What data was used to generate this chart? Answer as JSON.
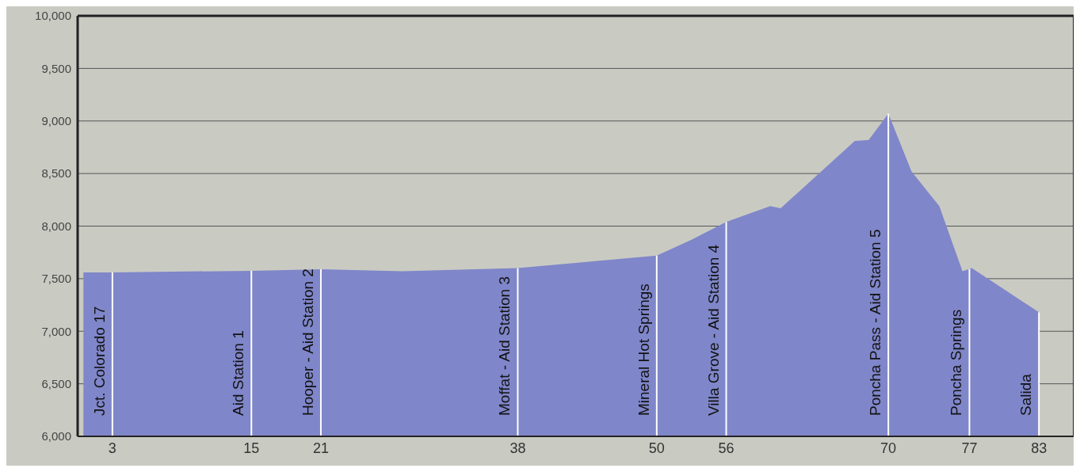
{
  "chart_data": {
    "type": "area",
    "x": [
      0.5,
      3,
      15,
      21,
      28,
      38,
      43,
      50,
      53,
      56,
      59.8,
      60.7,
      67.1,
      68.3,
      70,
      72,
      74.4,
      76.4,
      77.2,
      83
    ],
    "values": [
      7560,
      7560,
      7575,
      7590,
      7570,
      7600,
      7650,
      7720,
      7870,
      8040,
      8190,
      8170,
      8810,
      8820,
      9070,
      8520,
      8190,
      7570,
      7600,
      7180
    ],
    "color": "#7f86c9",
    "xlim": [
      0,
      86
    ],
    "xticks": [
      3,
      15,
      21,
      38,
      50,
      56,
      70,
      77,
      83
    ],
    "ylim": [
      6000,
      10000
    ],
    "yticks": [
      {
        "value": 6000,
        "label": "6,000"
      },
      {
        "value": 6500,
        "label": "6,500"
      },
      {
        "value": 7000,
        "label": "7,000"
      },
      {
        "value": 7500,
        "label": "7,500"
      },
      {
        "value": 8000,
        "label": "8,000"
      },
      {
        "value": 8500,
        "label": "8,500"
      },
      {
        "value": 9000,
        "label": "9,000"
      },
      {
        "value": 9500,
        "label": "9,500"
      },
      {
        "value": 10000,
        "label": "10,000"
      }
    ],
    "grid": "y",
    "ref_lines": [
      {
        "axis": "x",
        "value": 3,
        "label": "Jct. Colorado 17",
        "color": "#ffffff"
      },
      {
        "axis": "x",
        "value": 15,
        "label": "Aid Station 1",
        "color": "#ffffff"
      },
      {
        "axis": "x",
        "value": 21,
        "label": "Hooper - Aid Station 2",
        "color": "#ffffff"
      },
      {
        "axis": "x",
        "value": 38,
        "label": "Moffat - Aid Station 3",
        "color": "#ffffff"
      },
      {
        "axis": "x",
        "value": 50,
        "label": "Mineral Hot Springs",
        "color": "#ffffff"
      },
      {
        "axis": "x",
        "value": 56,
        "label": "Villa Grove - Aid Station 4",
        "color": "#ffffff"
      },
      {
        "axis": "x",
        "value": 70,
        "label": "Poncha Pass - Aid Station 5",
        "color": "#ffffff"
      },
      {
        "axis": "x",
        "value": 77,
        "label": "Poncha Springs",
        "color": "#ffffff"
      },
      {
        "axis": "x",
        "value": 83,
        "label": "Salida",
        "color": "#ffffff"
      }
    ]
  }
}
